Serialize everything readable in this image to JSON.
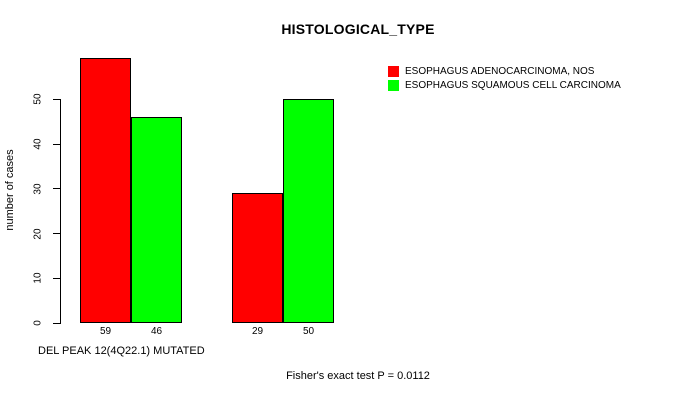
{
  "title": "HISTOLOGICAL_TYPE",
  "y_axis": {
    "label": "number of cases",
    "ticks": [
      0,
      10,
      20,
      30,
      40,
      50
    ]
  },
  "legend": {
    "items": [
      {
        "label": "ESOPHAGUS ADENOCARCINOMA, NOS",
        "color": "#ff0000"
      },
      {
        "label": "ESOPHAGUS SQUAMOUS CELL CARCINOMA",
        "color": "#00ff00"
      }
    ]
  },
  "footer": {
    "left": "DEL PEAK 12(4Q22.1) MUTATED",
    "center": "Fisher's exact test P = 0.0112"
  },
  "chart_data": {
    "type": "bar",
    "title": "HISTOLOGICAL_TYPE",
    "xlabel": "DEL PEAK 12(4Q22.1) MUTATED",
    "ylabel": "number of cases",
    "yticks": [
      0,
      10,
      20,
      30,
      40,
      50
    ],
    "ylim": [
      0,
      59
    ],
    "grid": false,
    "legend_position": "top-right",
    "series": [
      {
        "name": "ESOPHAGUS ADENOCARCINOMA, NOS",
        "color": "#ff0000",
        "values": [
          59,
          29
        ]
      },
      {
        "name": "ESOPHAGUS SQUAMOUS CELL CARCINOMA",
        "color": "#00ff00",
        "values": [
          46,
          50
        ]
      }
    ],
    "bar_value_labels": [
      [
        "59",
        "46"
      ],
      [
        "29",
        "50"
      ]
    ],
    "annotation": "Fisher's exact test P = 0.0112"
  }
}
